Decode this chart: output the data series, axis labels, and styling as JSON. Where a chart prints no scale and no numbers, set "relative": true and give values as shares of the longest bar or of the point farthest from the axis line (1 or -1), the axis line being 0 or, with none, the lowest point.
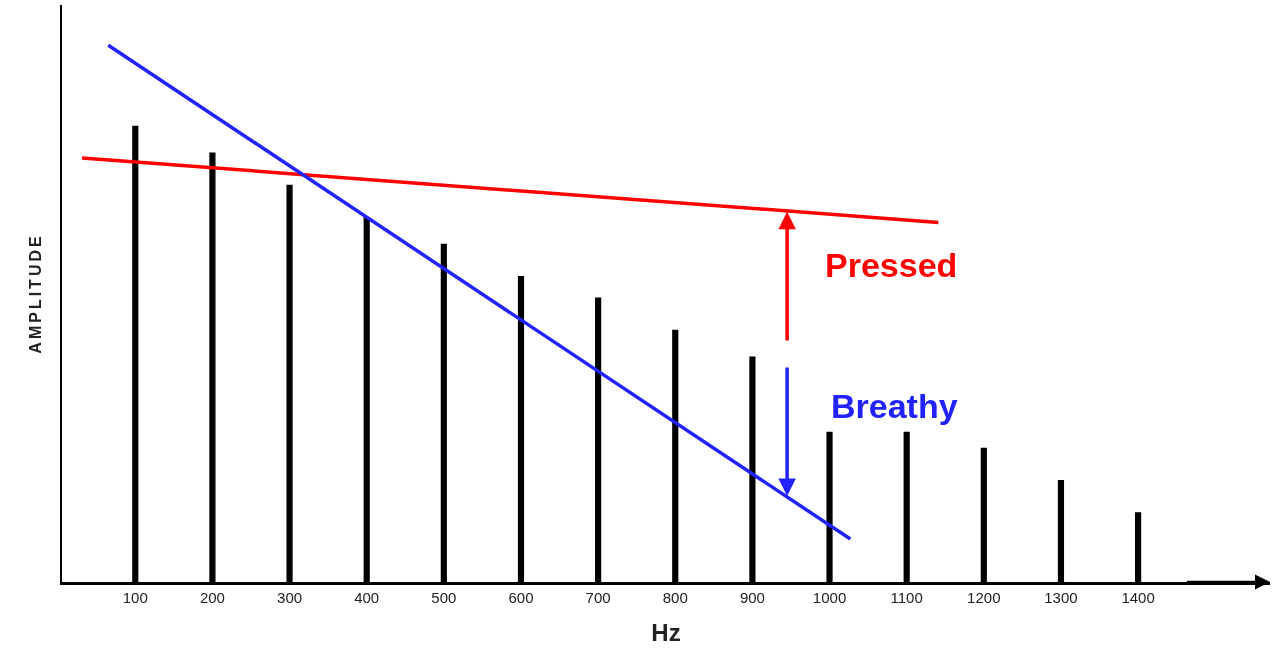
{
  "chart_data": {
    "type": "bar",
    "relative": true,
    "xlabel": "Hz",
    "ylabel": "AMPLITUDE",
    "x": [
      100,
      200,
      300,
      400,
      500,
      600,
      700,
      800,
      900,
      1000,
      1100,
      1200,
      1300,
      1400
    ],
    "xlim": [
      5,
      1571
    ],
    "xticks": [
      100,
      200,
      300,
      400,
      500,
      600,
      700,
      800,
      900,
      1000,
      1100,
      1200,
      1300,
      1400
    ],
    "series": [
      {
        "color": "#000000",
        "values": [
          0.85,
          0.8,
          0.74,
          0.68,
          0.63,
          0.57,
          0.53,
          0.47,
          0.42,
          0.28,
          0.28,
          0.25,
          0.19,
          0.13
        ]
      },
      {
        "type": "line",
        "color": "#ff0000",
        "x": [
          31,
          1141
        ],
        "values": [
          0.79,
          0.67
        ]
      },
      {
        "type": "line",
        "color": "#2222ff",
        "x": [
          65,
          1027
        ],
        "values": [
          1,
          0.08
        ]
      }
    ],
    "annotations": [
      {
        "text": "Pressed",
        "x": 945,
        "y": 0.69
      },
      {
        "text": "Breathy",
        "x": 945,
        "y": 0.16
      }
    ],
    "grid": false
  }
}
